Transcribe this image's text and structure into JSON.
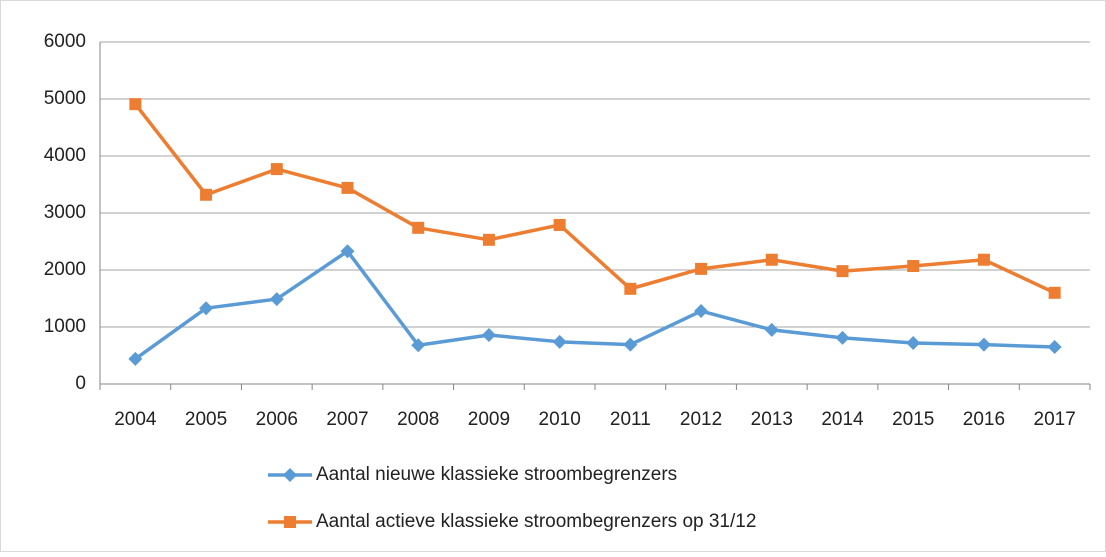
{
  "chart_data": {
    "type": "line",
    "categories": [
      "2004",
      "2005",
      "2006",
      "2007",
      "2008",
      "2009",
      "2010",
      "2011",
      "2012",
      "2013",
      "2014",
      "2015",
      "2016",
      "2017"
    ],
    "series": [
      {
        "name": "Aantal nieuwe klassieke stroombegrenzers",
        "color": "#5b9bd5",
        "marker": "diamond",
        "values": [
          440,
          1330,
          1490,
          2330,
          680,
          860,
          740,
          690,
          1280,
          950,
          810,
          720,
          690,
          650
        ]
      },
      {
        "name": "Aantal actieve klassieke stroombegrenzers op 31/12",
        "color": "#ed7d31",
        "marker": "square",
        "values": [
          4910,
          3320,
          3770,
          3440,
          2740,
          2530,
          2790,
          1670,
          2020,
          2180,
          1980,
          2070,
          2180,
          1600
        ]
      }
    ],
    "ylim": [
      0,
      6000
    ],
    "yticks": [
      0,
      1000,
      2000,
      3000,
      4000,
      5000,
      6000
    ],
    "grid": true,
    "legend": "bottom"
  }
}
